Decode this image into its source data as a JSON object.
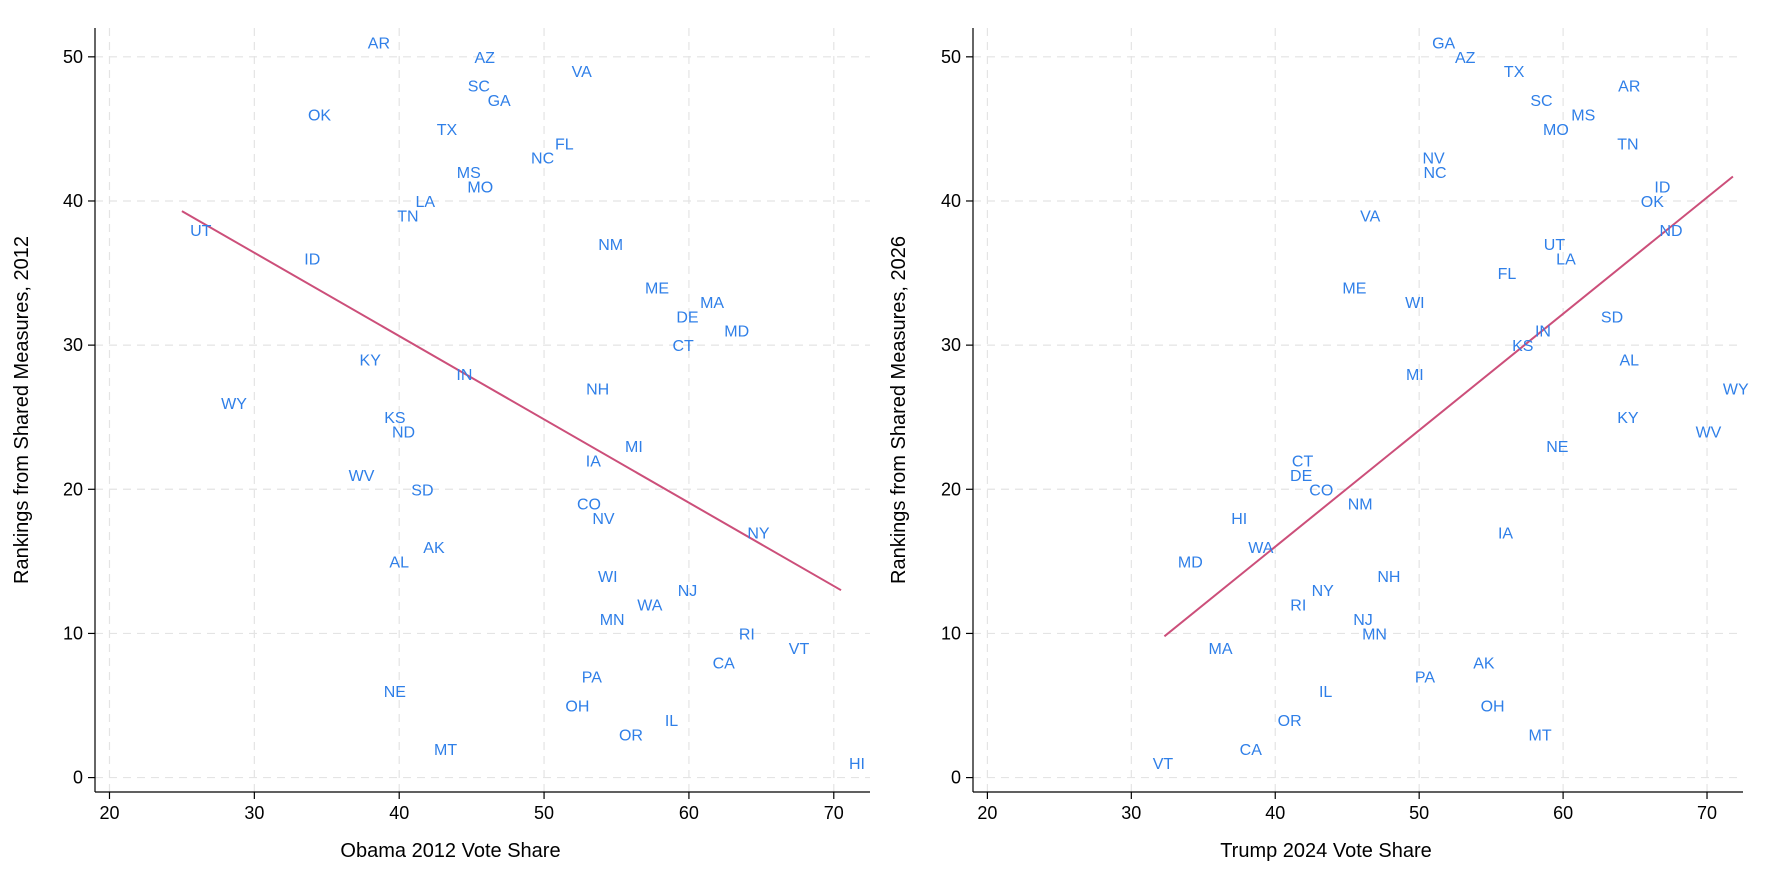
{
  "colors": {
    "points": "#2f7fe8",
    "fit_line": "#cc4f7a",
    "grid": "#e4e4e4",
    "axis": "#000000"
  },
  "chart_data": [
    {
      "type": "scatter",
      "xlabel": "Obama 2012 Vote Share",
      "ylabel": "Rankings from Shared Measures, 2012",
      "xlim": [
        19,
        72.5
      ],
      "ylim": [
        -1,
        52
      ],
      "xticks": [
        20,
        30,
        40,
        50,
        60,
        70
      ],
      "yticks": [
        0,
        10,
        20,
        30,
        40,
        50
      ],
      "grid": true,
      "fit_line": {
        "x": [
          25,
          70.5
        ],
        "y": [
          39.3,
          13
        ]
      },
      "points": [
        {
          "label": "AR",
          "x": 38.6,
          "y": 51
        },
        {
          "label": "AZ",
          "x": 45.9,
          "y": 50
        },
        {
          "label": "VA",
          "x": 52.6,
          "y": 49
        },
        {
          "label": "SC",
          "x": 45.5,
          "y": 48
        },
        {
          "label": "GA",
          "x": 46.9,
          "y": 47
        },
        {
          "label": "OK",
          "x": 34.5,
          "y": 46
        },
        {
          "label": "TX",
          "x": 43.3,
          "y": 45
        },
        {
          "label": "FL",
          "x": 51.4,
          "y": 44
        },
        {
          "label": "NC",
          "x": 49.9,
          "y": 43
        },
        {
          "label": "MS",
          "x": 44.8,
          "y": 42
        },
        {
          "label": "MO",
          "x": 45.6,
          "y": 41
        },
        {
          "label": "LA",
          "x": 41.8,
          "y": 40
        },
        {
          "label": "TN",
          "x": 40.6,
          "y": 39
        },
        {
          "label": "UT",
          "x": 26.3,
          "y": 38
        },
        {
          "label": "NM",
          "x": 54.6,
          "y": 37
        },
        {
          "label": "ID",
          "x": 34,
          "y": 36
        },
        {
          "label": "ME",
          "x": 57.8,
          "y": 34
        },
        {
          "label": "MA",
          "x": 61.6,
          "y": 33
        },
        {
          "label": "DE",
          "x": 59.9,
          "y": 32
        },
        {
          "label": "MD",
          "x": 63.3,
          "y": 31
        },
        {
          "label": "CT",
          "x": 59.6,
          "y": 30
        },
        {
          "label": "KY",
          "x": 38,
          "y": 29
        },
        {
          "label": "IN",
          "x": 44.5,
          "y": 28
        },
        {
          "label": "NH",
          "x": 53.7,
          "y": 27
        },
        {
          "label": "WY",
          "x": 28.6,
          "y": 26
        },
        {
          "label": "KS",
          "x": 39.7,
          "y": 25
        },
        {
          "label": "ND",
          "x": 40.3,
          "y": 24
        },
        {
          "label": "MI",
          "x": 56.2,
          "y": 23
        },
        {
          "label": "IA",
          "x": 53.4,
          "y": 22
        },
        {
          "label": "WV",
          "x": 37.4,
          "y": 21
        },
        {
          "label": "SD",
          "x": 41.6,
          "y": 20
        },
        {
          "label": "CO",
          "x": 53.1,
          "y": 19
        },
        {
          "label": "NV",
          "x": 54.1,
          "y": 18
        },
        {
          "label": "NY",
          "x": 64.8,
          "y": 17
        },
        {
          "label": "AK",
          "x": 42.4,
          "y": 16
        },
        {
          "label": "AL",
          "x": 40,
          "y": 15
        },
        {
          "label": "WI",
          "x": 54.4,
          "y": 14
        },
        {
          "label": "NJ",
          "x": 59.9,
          "y": 13
        },
        {
          "label": "WA",
          "x": 57.3,
          "y": 12
        },
        {
          "label": "MN",
          "x": 54.7,
          "y": 11
        },
        {
          "label": "RI",
          "x": 64,
          "y": 10
        },
        {
          "label": "VT",
          "x": 67.6,
          "y": 9
        },
        {
          "label": "CA",
          "x": 62.4,
          "y": 8
        },
        {
          "label": "PA",
          "x": 53.3,
          "y": 7
        },
        {
          "label": "NE",
          "x": 39.7,
          "y": 6
        },
        {
          "label": "OH",
          "x": 52.3,
          "y": 5
        },
        {
          "label": "IL",
          "x": 58.8,
          "y": 4
        },
        {
          "label": "OR",
          "x": 56,
          "y": 3
        },
        {
          "label": "MT",
          "x": 43.2,
          "y": 2
        },
        {
          "label": "HI",
          "x": 71.6,
          "y": 1
        }
      ]
    },
    {
      "type": "scatter",
      "xlabel": "Trump 2024 Vote Share",
      "ylabel": "Rankings from Shared Measures, 2026",
      "xlim": [
        19,
        72.5
      ],
      "ylim": [
        -1,
        52
      ],
      "xticks": [
        20,
        30,
        40,
        50,
        60,
        70
      ],
      "yticks": [
        0,
        10,
        20,
        30,
        40,
        50
      ],
      "grid": true,
      "fit_line": {
        "x": [
          32.3,
          71.8
        ],
        "y": [
          9.8,
          41.7
        ]
      },
      "points": [
        {
          "label": "GA",
          "x": 51.7,
          "y": 51
        },
        {
          "label": "AZ",
          "x": 53.2,
          "y": 50
        },
        {
          "label": "TX",
          "x": 56.6,
          "y": 49
        },
        {
          "label": "AR",
          "x": 64.6,
          "y": 48
        },
        {
          "label": "SC",
          "x": 58.5,
          "y": 47
        },
        {
          "label": "MS",
          "x": 61.4,
          "y": 46
        },
        {
          "label": "MO",
          "x": 59.5,
          "y": 45
        },
        {
          "label": "TN",
          "x": 64.5,
          "y": 44
        },
        {
          "label": "NV",
          "x": 51,
          "y": 43
        },
        {
          "label": "NC",
          "x": 51.1,
          "y": 42
        },
        {
          "label": "ID",
          "x": 66.9,
          "y": 41
        },
        {
          "label": "OK",
          "x": 66.2,
          "y": 40
        },
        {
          "label": "VA",
          "x": 46.6,
          "y": 39
        },
        {
          "label": "ND",
          "x": 67.5,
          "y": 38
        },
        {
          "label": "UT",
          "x": 59.4,
          "y": 37
        },
        {
          "label": "LA",
          "x": 60.2,
          "y": 36
        },
        {
          "label": "FL",
          "x": 56.1,
          "y": 35
        },
        {
          "label": "ME",
          "x": 45.5,
          "y": 34
        },
        {
          "label": "WI",
          "x": 49.7,
          "y": 33
        },
        {
          "label": "SD",
          "x": 63.4,
          "y": 32
        },
        {
          "label": "IN",
          "x": 58.6,
          "y": 31
        },
        {
          "label": "KS",
          "x": 57.2,
          "y": 30
        },
        {
          "label": "AL",
          "x": 64.6,
          "y": 29
        },
        {
          "label": "MI",
          "x": 49.7,
          "y": 28
        },
        {
          "label": "WY",
          "x": 72,
          "y": 27
        },
        {
          "label": "KY",
          "x": 64.5,
          "y": 25
        },
        {
          "label": "WV",
          "x": 70.1,
          "y": 24
        },
        {
          "label": "NE",
          "x": 59.6,
          "y": 23
        },
        {
          "label": "CT",
          "x": 41.9,
          "y": 22
        },
        {
          "label": "DE",
          "x": 41.8,
          "y": 21
        },
        {
          "label": "CO",
          "x": 43.2,
          "y": 20
        },
        {
          "label": "NM",
          "x": 45.9,
          "y": 19
        },
        {
          "label": "HI",
          "x": 37.5,
          "y": 18
        },
        {
          "label": "IA",
          "x": 56,
          "y": 17
        },
        {
          "label": "WA",
          "x": 39,
          "y": 16
        },
        {
          "label": "MD",
          "x": 34.1,
          "y": 15
        },
        {
          "label": "NH",
          "x": 47.9,
          "y": 14
        },
        {
          "label": "NY",
          "x": 43.3,
          "y": 13
        },
        {
          "label": "RI",
          "x": 41.6,
          "y": 12
        },
        {
          "label": "NJ",
          "x": 46.1,
          "y": 11
        },
        {
          "label": "MN",
          "x": 46.9,
          "y": 10
        },
        {
          "label": "MA",
          "x": 36.2,
          "y": 9
        },
        {
          "label": "AK",
          "x": 54.5,
          "y": 8
        },
        {
          "label": "PA",
          "x": 50.4,
          "y": 7
        },
        {
          "label": "IL",
          "x": 43.5,
          "y": 6
        },
        {
          "label": "OH",
          "x": 55.1,
          "y": 5
        },
        {
          "label": "OR",
          "x": 41,
          "y": 4
        },
        {
          "label": "MT",
          "x": 58.4,
          "y": 3
        },
        {
          "label": "CA",
          "x": 38.3,
          "y": 2
        },
        {
          "label": "VT",
          "x": 32.2,
          "y": 1
        }
      ]
    }
  ]
}
